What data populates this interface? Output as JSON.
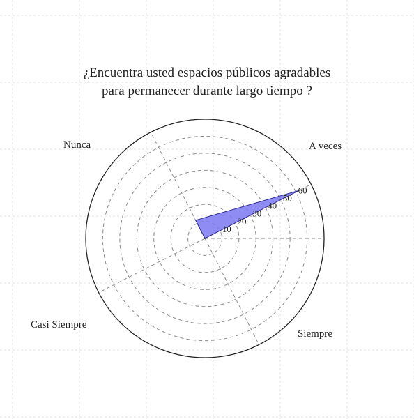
{
  "chart_data": {
    "type": "radar",
    "title": [
      "¿Encuentra usted espacios públicos agradables",
      "para permanecer durante largo tiempo ?"
    ],
    "categories": [
      "A veces",
      "Nunca",
      "Casi Siempre",
      "Siempre"
    ],
    "series": [
      {
        "values": [
          62,
          12,
          0,
          0
        ]
      }
    ],
    "radial_ticks": [
      10,
      20,
      30,
      40,
      50,
      60
    ],
    "rlim": [
      0,
      70
    ],
    "grid": true,
    "colors": {
      "fill": "#7b79f2",
      "stroke": "#2a2890",
      "highlight_label": "#2a2890",
      "label": "#222222",
      "grid": "#8a8a8a",
      "outline": "#222222",
      "page_grid": "#e3e3e3"
    }
  }
}
